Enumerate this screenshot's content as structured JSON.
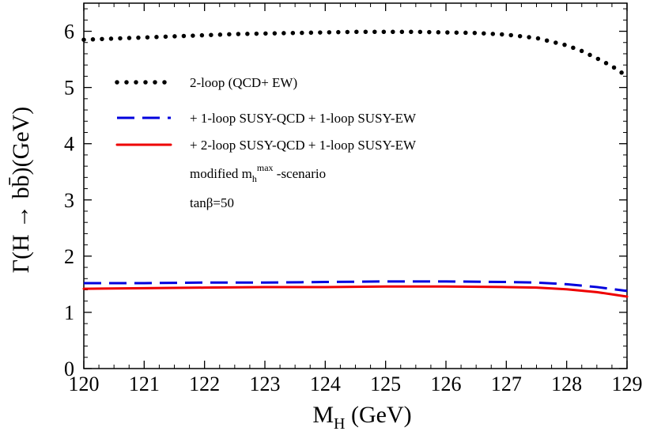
{
  "chart_data": {
    "type": "line",
    "xlabel": "M",
    "xlabel_sub": "H",
    "xlabel_unit": " (GeV)",
    "ylabel": "Γ(H → bb̄)(GeV)",
    "xlim": [
      120,
      129
    ],
    "ylim": [
      0,
      6.5
    ],
    "x_ticks": [
      120,
      121,
      122,
      123,
      124,
      125,
      126,
      127,
      128,
      129
    ],
    "y_ticks": [
      0,
      1,
      2,
      3,
      4,
      5,
      6
    ],
    "grid": false,
    "legend_position": "center-left",
    "series": [
      {
        "name": "2-loop (QCD+ EW)",
        "color": "#000000",
        "style": "dotted",
        "x": [
          120,
          120.5,
          121,
          121.5,
          122,
          122.5,
          123,
          123.5,
          124,
          124.5,
          125,
          125.5,
          126,
          126.5,
          127,
          127.5,
          128,
          128.25,
          128.5,
          128.75,
          129
        ],
        "y": [
          5.85,
          5.87,
          5.89,
          5.91,
          5.93,
          5.95,
          5.96,
          5.97,
          5.98,
          5.99,
          5.99,
          5.99,
          5.98,
          5.97,
          5.94,
          5.88,
          5.75,
          5.65,
          5.52,
          5.38,
          5.2
        ]
      },
      {
        "name": "+ 1-loop SUSY-QCD + 1-loop SUSY-EW",
        "color": "#0000dd",
        "style": "dashed",
        "x": [
          120,
          121,
          122,
          123,
          124,
          125,
          126,
          127,
          127.5,
          128,
          128.5,
          129
        ],
        "y": [
          1.52,
          1.52,
          1.53,
          1.53,
          1.54,
          1.55,
          1.55,
          1.54,
          1.53,
          1.5,
          1.45,
          1.38
        ]
      },
      {
        "name": "+ 2-loop SUSY-QCD + 1-loop SUSY-EW",
        "color": "#ee0000",
        "style": "solid",
        "x": [
          120,
          121,
          122,
          123,
          124,
          125,
          126,
          127,
          127.5,
          128,
          128.5,
          129
        ],
        "y": [
          1.42,
          1.43,
          1.44,
          1.45,
          1.45,
          1.46,
          1.46,
          1.45,
          1.44,
          1.41,
          1.36,
          1.28
        ]
      }
    ],
    "annotations": [
      {
        "text": "modified m",
        "sub": "h",
        "sup": "max",
        "suffix": " -scenario"
      },
      {
        "text": "tanβ=50"
      }
    ]
  }
}
